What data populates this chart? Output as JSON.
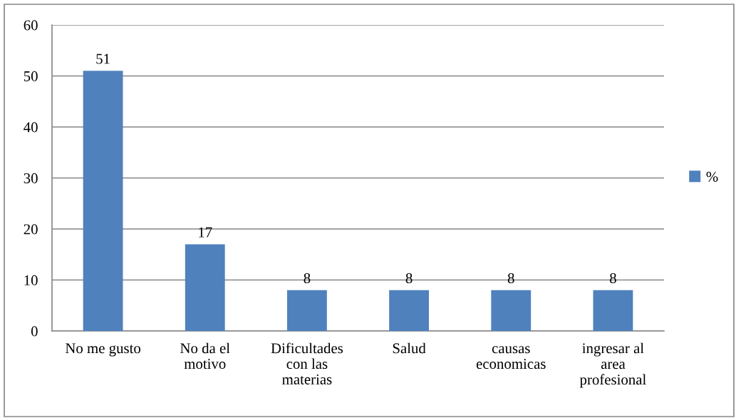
{
  "chart_data": {
    "type": "bar",
    "categories": [
      "No me gusto",
      "No da el\nmotivo",
      "Dificultades\ncon las\nmaterias",
      "Salud",
      "causas\neconomicas",
      "ingresar al\narea\nprofesional"
    ],
    "series": [
      {
        "name": "%",
        "color": "#4f81bd",
        "values": [
          51,
          17,
          8,
          8,
          8,
          8
        ]
      }
    ],
    "ylim": [
      0,
      60
    ],
    "yticks": [
      0,
      10,
      20,
      30,
      40,
      50,
      60
    ],
    "grid": "y",
    "legend": "right",
    "data_labels": true
  }
}
